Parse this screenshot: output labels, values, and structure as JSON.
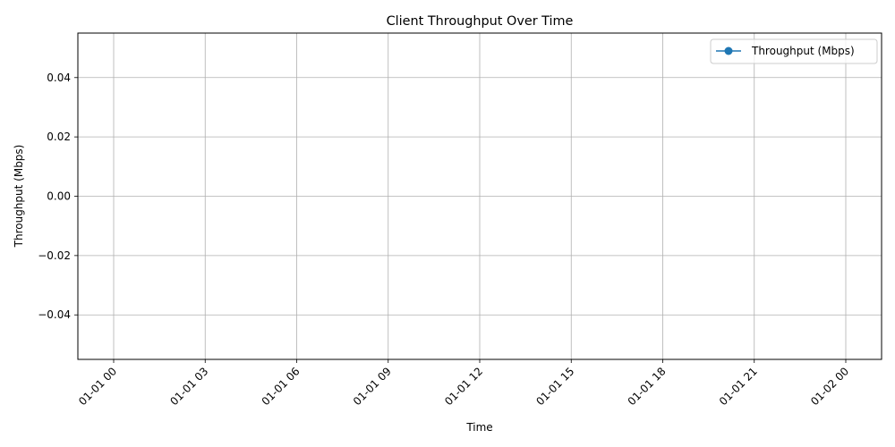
{
  "chart_data": {
    "type": "line",
    "title": "Client Throughput Over Time",
    "xlabel": "Time",
    "ylabel": "Throughput (Mbps)",
    "x_ticks": [
      "01-01 00",
      "01-01 03",
      "01-01 06",
      "01-01 09",
      "01-01 12",
      "01-01 15",
      "01-01 18",
      "01-01 21",
      "01-02 00"
    ],
    "y_ticks": [
      0.04,
      0.02,
      0.0,
      -0.02,
      -0.04
    ],
    "y_tick_labels": [
      "0.04",
      "0.02",
      "0.00",
      "−0.02",
      "−0.04"
    ],
    "ylim": [
      -0.055,
      0.055
    ],
    "grid": true,
    "legend_position": "top-right",
    "series": [
      {
        "name": "Throughput (Mbps)",
        "color": "#1f77b4",
        "marker": "circle",
        "x": [],
        "y": []
      }
    ]
  }
}
